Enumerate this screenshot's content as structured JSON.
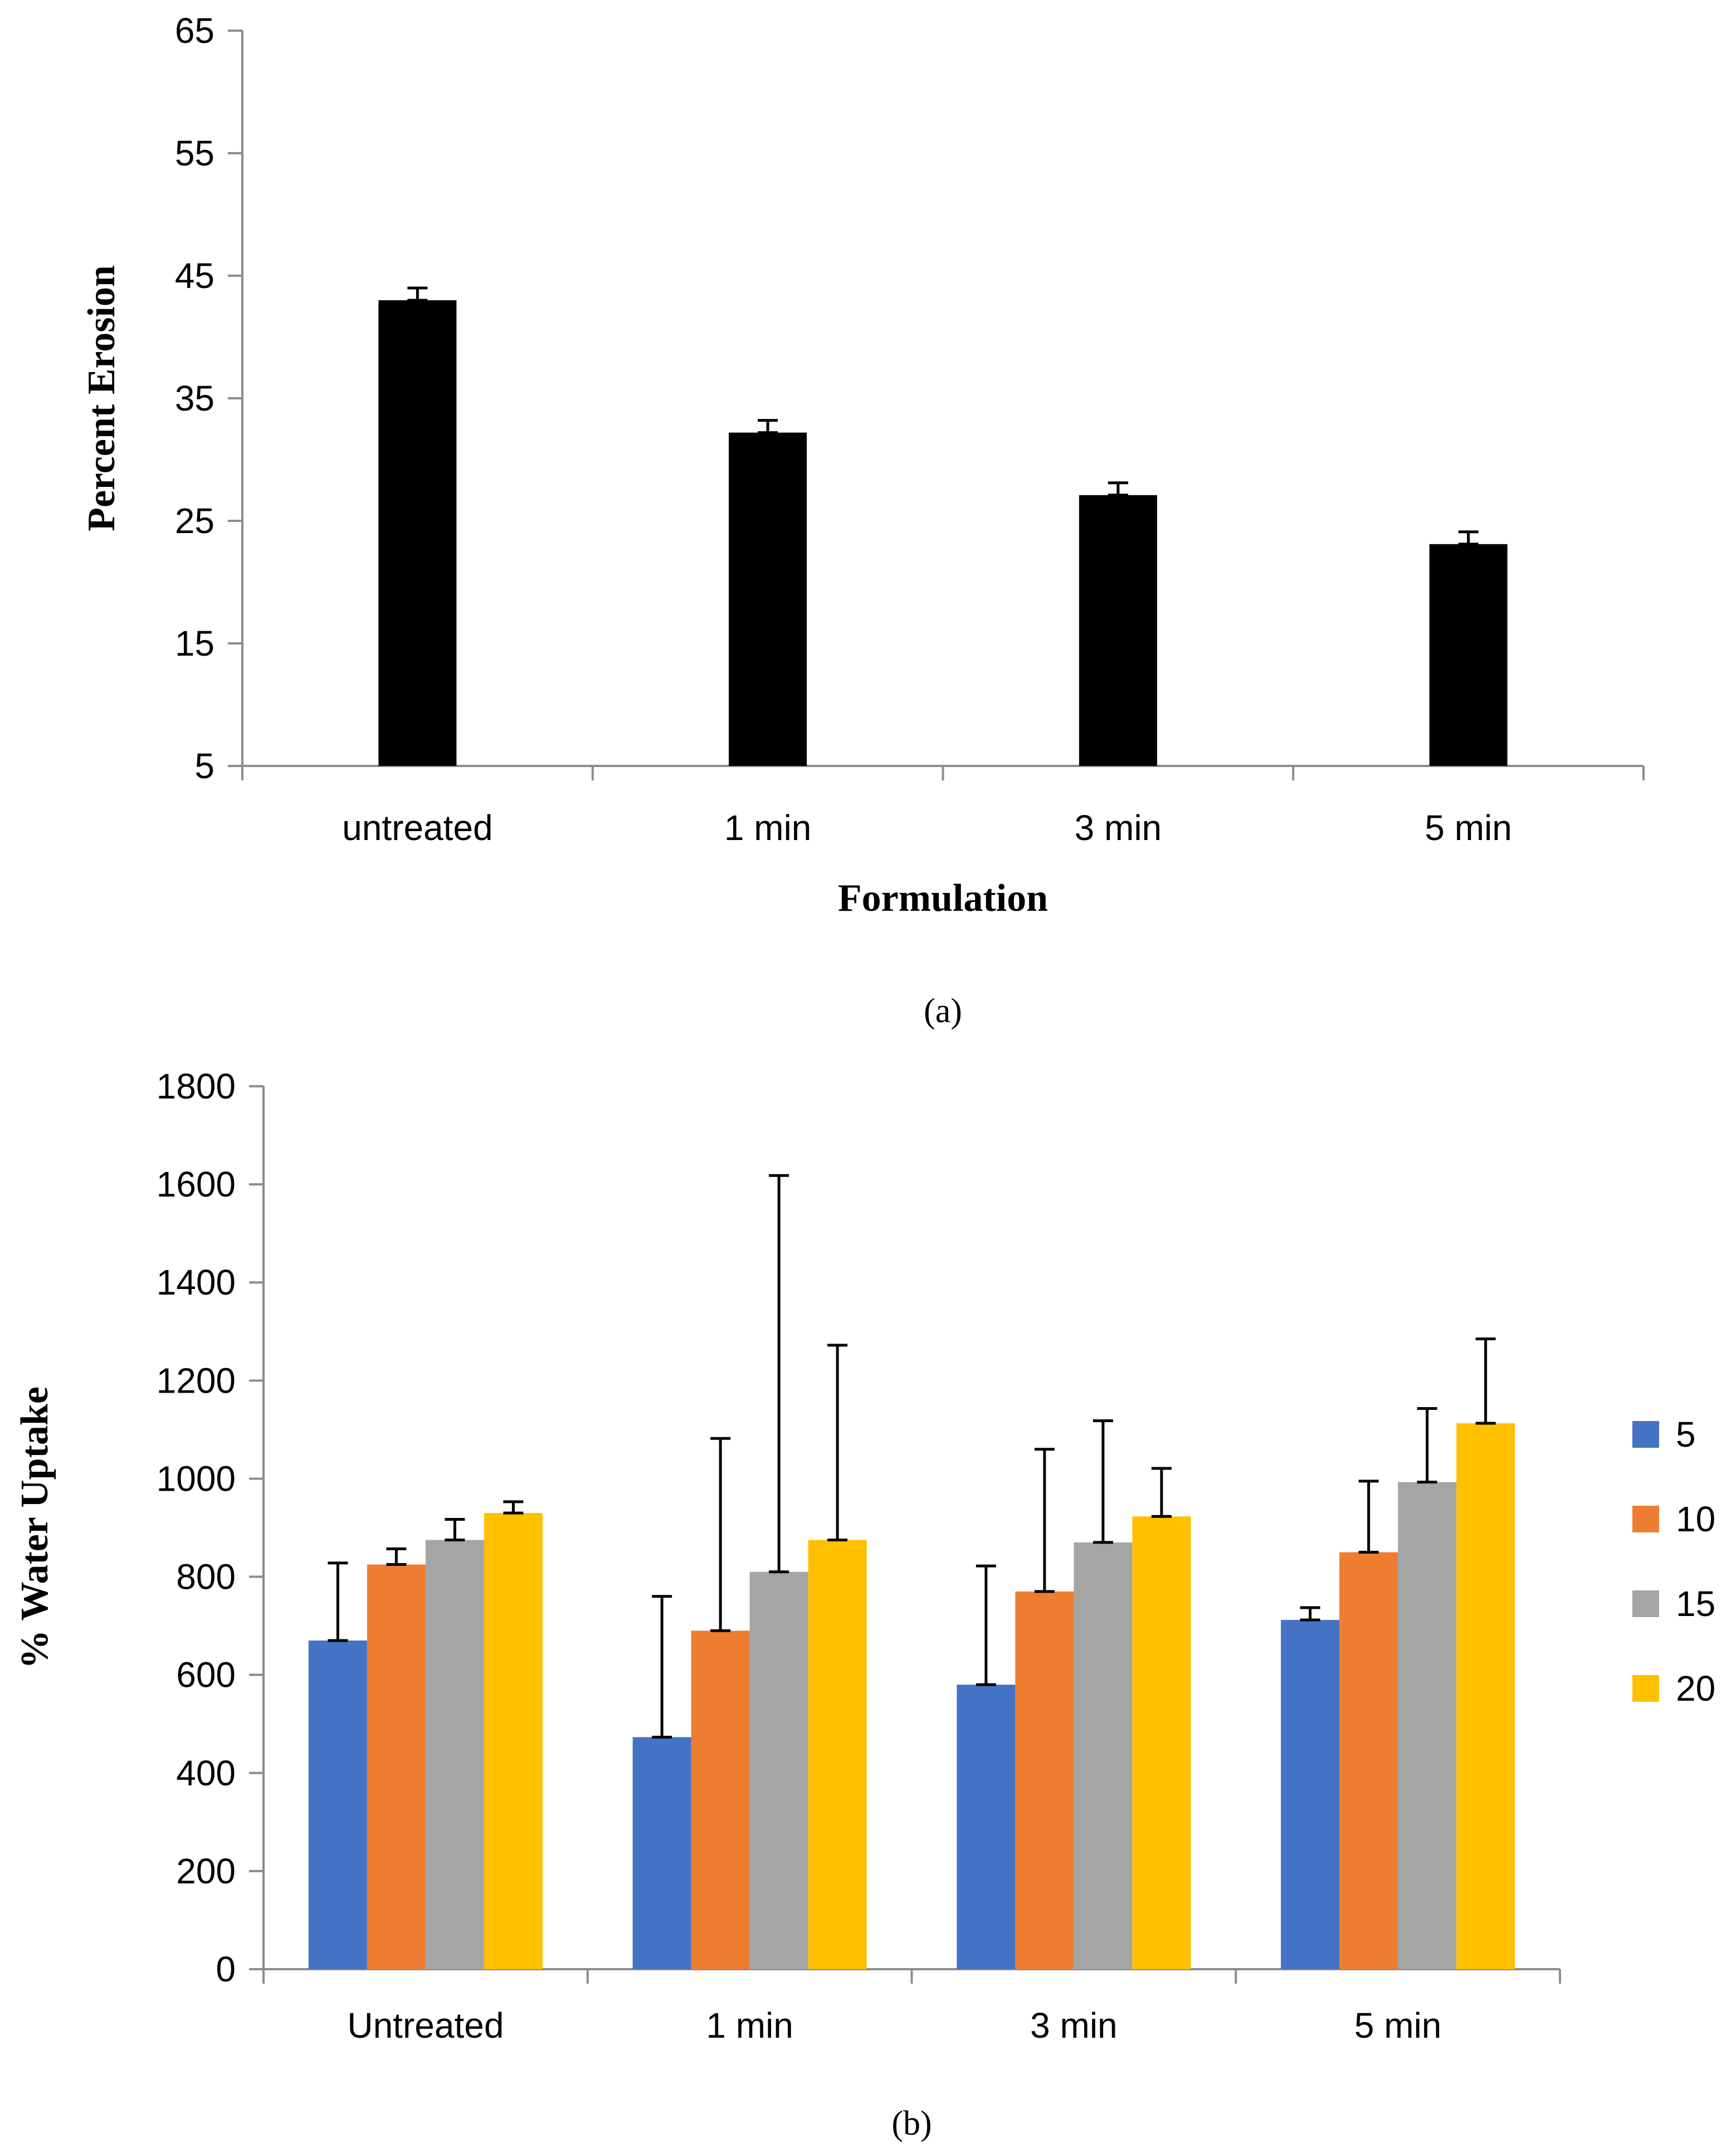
{
  "chart_data": [
    {
      "type": "bar",
      "panel_label": "(a)",
      "xlabel": "Formulation",
      "ylabel": "Percent Erosion",
      "ylim": [
        5,
        65
      ],
      "yticks": [
        5,
        15,
        25,
        35,
        45,
        55,
        65
      ],
      "grid": false,
      "categories": [
        "untreated",
        "1 min",
        "3 min",
        "5 min"
      ],
      "series": [
        {
          "values": [
            43,
            32.2,
            27.1,
            23.1
          ],
          "error": [
            1,
            1,
            1,
            1
          ],
          "color": "#000000"
        }
      ]
    },
    {
      "type": "bar",
      "panel_label": "(b)",
      "xlabel": "",
      "ylabel": "% Water Uptake",
      "ylim": [
        0,
        1800
      ],
      "yticks": [
        0,
        200,
        400,
        600,
        800,
        1000,
        1200,
        1400,
        1600,
        1800
      ],
      "grid": false,
      "legend_position": "right",
      "categories": [
        "Untreated",
        "1 min",
        "3 min",
        "5 min"
      ],
      "series": [
        {
          "name": "5",
          "color": "#4472C4",
          "values": [
            670,
            473,
            580,
            712
          ],
          "error": [
            158,
            287,
            242,
            25
          ]
        },
        {
          "name": "10",
          "color": "#ED7D31",
          "values": [
            825,
            690,
            770,
            850
          ],
          "error": [
            32,
            392,
            290,
            145
          ]
        },
        {
          "name": "15",
          "color": "#A5A5A5",
          "values": [
            875,
            810,
            870,
            993
          ],
          "error": [
            42,
            808,
            248,
            150
          ]
        },
        {
          "name": "20",
          "color": "#FFC000",
          "values": [
            930,
            875,
            923,
            1113
          ],
          "error": [
            23,
            397,
            98,
            172
          ]
        }
      ]
    }
  ]
}
